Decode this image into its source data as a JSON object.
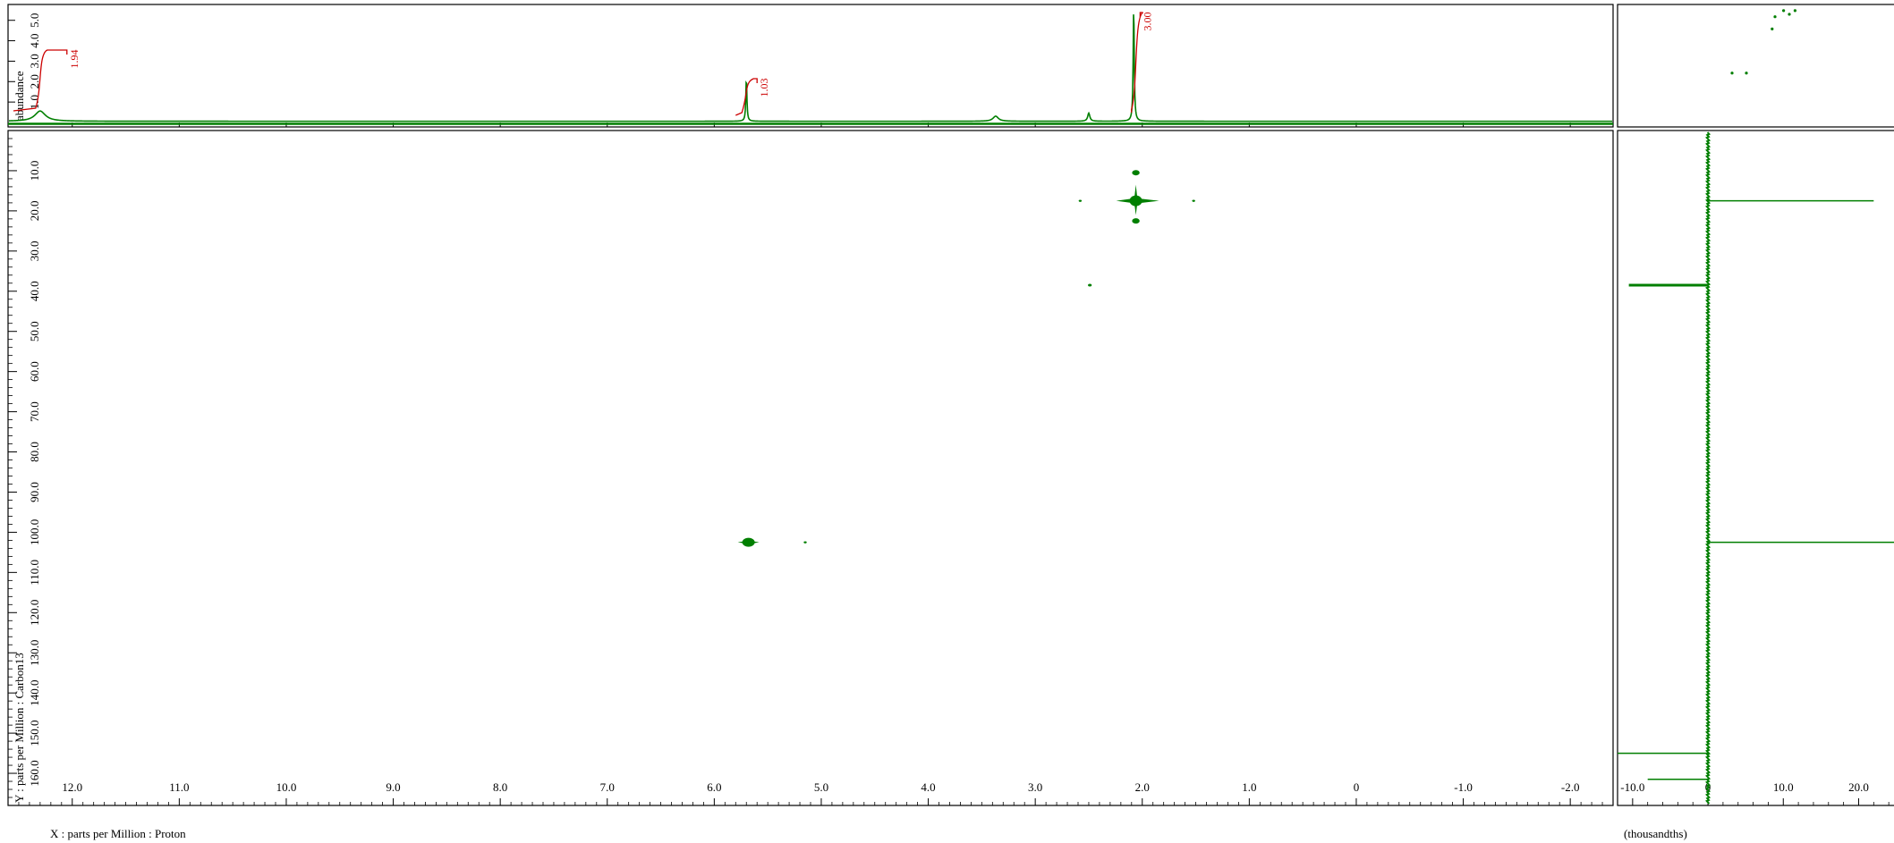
{
  "chart_data": {
    "type": "scatter",
    "subtype": "2D NMR (1H-13C) contour plot with 1D projections",
    "x_axis": {
      "label": "X : parts per Million : Proton",
      "range": [
        12.6,
        -2.4
      ],
      "ticks": [
        12.0,
        11.0,
        10.0,
        9.0,
        8.0,
        7.0,
        6.0,
        5.0,
        4.0,
        3.0,
        2.0,
        1.0,
        0,
        -1.0,
        -2.0
      ],
      "tick_labels": [
        "12.0",
        "11.0",
        "10.0",
        "9.0",
        "8.0",
        "7.0",
        "6.0",
        "5.0",
        "4.0",
        "3.0",
        "2.0",
        "1.0",
        "0",
        "-1.0",
        "-2.0"
      ]
    },
    "y_axis": {
      "label": "Y : parts per Million : Carbon13",
      "range": [
        0,
        168
      ],
      "ticks": [
        10,
        20,
        30,
        40,
        50,
        60,
        70,
        80,
        90,
        100,
        110,
        120,
        130,
        140,
        150,
        160
      ],
      "tick_labels": [
        "10.0",
        "20.0",
        "30.0",
        "40.0",
        "50.0",
        "60.0",
        "70.0",
        "80.0",
        "90.0",
        "100.0",
        "110.0",
        "120.0",
        "130.0",
        "140.0",
        "150.0",
        "160.0"
      ]
    },
    "top_spectrum": {
      "ylabel": "abundance",
      "ylim": [
        0,
        5.6
      ],
      "ticks": [
        1.0,
        2.0,
        3.0,
        4.0,
        5.0
      ],
      "tick_labels": [
        "1.0",
        "2.0",
        "3.0",
        "4.0",
        "5.0"
      ],
      "peaks": [
        {
          "x": 12.3,
          "height": 0.5,
          "width": 0.06
        },
        {
          "x": 5.7,
          "height": 2.1,
          "width": 0.006
        },
        {
          "x": 3.37,
          "height": 0.25,
          "width": 0.03
        },
        {
          "x": 2.5,
          "height": 0.4,
          "width": 0.012
        },
        {
          "x": 2.08,
          "height": 5.6,
          "width": 0.006
        }
      ],
      "integrals": [
        {
          "from": 12.55,
          "to": 12.05,
          "label": "1.94"
        },
        {
          "from": 5.8,
          "to": 5.6,
          "label": "1.03"
        },
        {
          "from": 2.1,
          "to": 2.02,
          "label": "3.00"
        }
      ]
    },
    "cross_peaks": [
      {
        "x": 2.06,
        "y": 17.5,
        "size": 3
      },
      {
        "x": 2.06,
        "y": 10.5,
        "size": 1
      },
      {
        "x": 2.06,
        "y": 22.5,
        "size": 1
      },
      {
        "x": 2.58,
        "y": 17.5,
        "size": 0.3
      },
      {
        "x": 1.52,
        "y": 17.5,
        "size": 0.4
      },
      {
        "x": 2.49,
        "y": 38.5,
        "size": 0.5
      },
      {
        "x": 5.68,
        "y": 102.5,
        "size": 1.6
      },
      {
        "x": 5.15,
        "y": 102.5,
        "size": 0.2
      }
    ],
    "side_projection": {
      "xlabel": "(thousandths)",
      "xlim": [
        -12,
        26
      ],
      "ticks": [
        -10,
        0,
        10,
        20
      ],
      "tick_labels": [
        "-10.0",
        "0",
        "10.0",
        "20.0"
      ],
      "features": [
        {
          "y": 17.5,
          "value": 22
        },
        {
          "y": 38.5,
          "value": -10.5
        },
        {
          "y": 102.5,
          "value": 26
        },
        {
          "y": 155,
          "value": -12
        },
        {
          "y": 161.5,
          "value": -8
        }
      ]
    },
    "corner_thumbnail": {
      "dots": [
        {
          "x": 0.58,
          "y": 0.05
        },
        {
          "x": 0.6,
          "y": 0.08
        },
        {
          "x": 0.62,
          "y": 0.05
        },
        {
          "x": 0.55,
          "y": 0.1
        },
        {
          "x": 0.54,
          "y": 0.2
        },
        {
          "x": 0.4,
          "y": 0.56
        },
        {
          "x": 0.45,
          "y": 0.56
        }
      ]
    },
    "colors": {
      "spectrum": "#007f00",
      "integral": "#cc0000",
      "axis": "#000000"
    }
  }
}
